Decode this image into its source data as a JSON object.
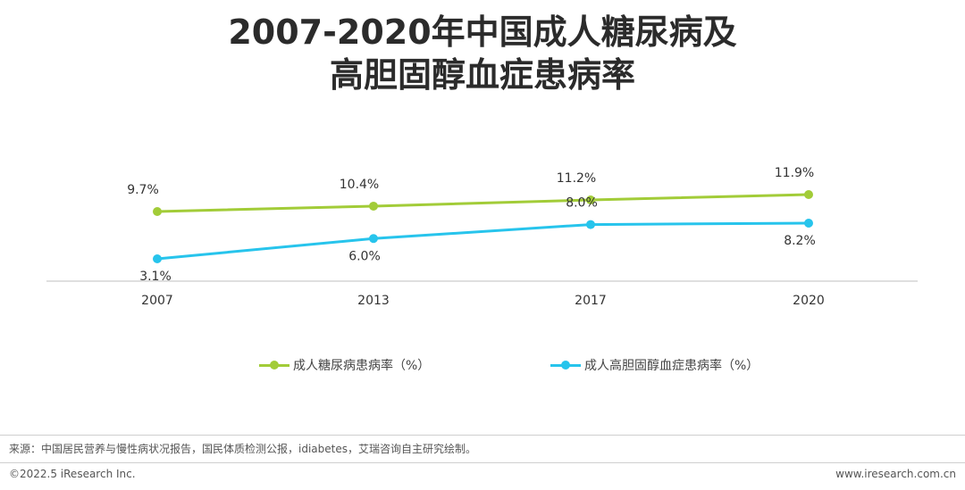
{
  "chart_data": {
    "type": "line",
    "title": "2007-2020年中国成人糖尿病及高胆固醇血症患病率",
    "title_lines": [
      "2007-2020年中国成人糖尿病及",
      "高胆固醇血症患病率"
    ],
    "categories": [
      "2007",
      "2013",
      "2017",
      "2020"
    ],
    "series": [
      {
        "name": "成人糖尿病患病率（%）",
        "values": [
          9.7,
          10.4,
          11.2,
          11.9
        ],
        "labels": [
          "9.7%",
          "10.4%",
          "11.2%",
          "11.9%"
        ],
        "color": "#a2cc38"
      },
      {
        "name": "成人高胆固醇血症患病率（%）",
        "values": [
          3.1,
          6.0,
          8.0,
          8.2
        ],
        "labels": [
          "3.1%",
          "6.0%",
          "8.0%",
          "8.2%"
        ],
        "color": "#27c4ec"
      }
    ],
    "xlabel": "",
    "ylabel": "",
    "ylim": [
      0,
      14
    ],
    "grid": false,
    "legend": "bottom"
  },
  "footer": {
    "source": "来源：中国居民营养与慢性病状况报告，国民体质检测公报，idiabetes，艾瑞咨询自主研究绘制。",
    "copyright": "©2022.5 iResearch Inc.",
    "website": "www.iresearch.com.cn"
  },
  "colors": {
    "axis": "#bfbfbf",
    "text": "#333333"
  }
}
